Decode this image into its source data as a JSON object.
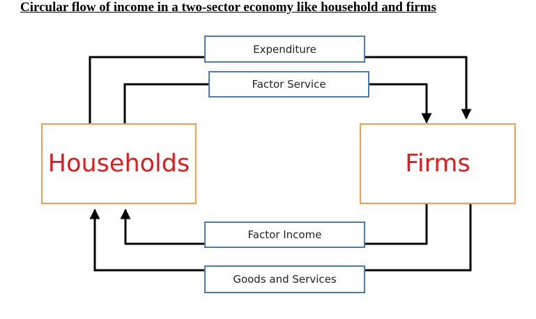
{
  "title": "Circular flow of income in a two-sector economy like household and firms",
  "sectors": {
    "households": "Households",
    "firms": "Firms"
  },
  "flows": {
    "expenditure": "Expenditure",
    "factor_service": "Factor Service",
    "factor_income": "Factor Income",
    "goods_and_services": "Goods and Services"
  },
  "colors": {
    "sector_border": "#f39c4a",
    "sector_text": "#e01b1b",
    "flow_border": "#4a7ab5",
    "arrow": "#000000"
  }
}
